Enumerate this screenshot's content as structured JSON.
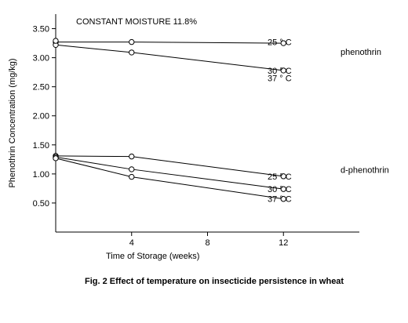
{
  "chart_data": {
    "type": "line",
    "title": "",
    "annotation": "CONSTANT MOISTURE 11.8%",
    "xlabel": "Time of Storage (weeks)",
    "ylabel": "Phenothrin Concentration (mg/kg)",
    "caption": "Fig. 2   Effect of temperature on insecticide persistence in wheat",
    "xlim": [
      0,
      16
    ],
    "ylim": [
      0,
      3.75
    ],
    "x_ticks": [
      4,
      8,
      12
    ],
    "y_ticks": [
      "0.50",
      "1.00",
      "1.50",
      "2.00",
      "2.50",
      "3.00",
      "3.50"
    ],
    "grid": false,
    "groups": [
      {
        "name": "phenothrin",
        "label_y": 3.1
      },
      {
        "name": "d-phenothrin",
        "label_y": 1.07
      }
    ],
    "series": [
      {
        "name": "25 ° C",
        "group": "phenothrin",
        "x": [
          0,
          4,
          12
        ],
        "y": [
          3.27,
          3.27,
          3.25
        ],
        "label_y": 3.27
      },
      {
        "name": "30 ° C",
        "group": "phenothrin",
        "x": [
          0,
          4,
          12
        ],
        "y": [
          3.22,
          3.09,
          2.78
        ],
        "label_y": 2.78
      },
      {
        "name": "37 ° C",
        "group": "phenothrin",
        "x": [],
        "y": [],
        "label_y": 2.65
      },
      {
        "name": "25 ° C",
        "group": "d-phenothrin",
        "x": [
          0,
          4,
          12
        ],
        "y": [
          1.31,
          1.3,
          0.96
        ],
        "label_y": 0.96
      },
      {
        "name": "30 ° C",
        "group": "d-phenothrin",
        "x": [
          0,
          4,
          12
        ],
        "y": [
          1.29,
          1.08,
          0.74
        ],
        "label_y": 0.74
      },
      {
        "name": "37 ° C",
        "group": "d-phenothrin",
        "x": [
          0,
          4,
          12
        ],
        "y": [
          1.27,
          0.95,
          0.57
        ],
        "label_y": 0.57
      }
    ],
    "extra_points": [
      {
        "x": 0,
        "y": 3.29
      }
    ]
  }
}
